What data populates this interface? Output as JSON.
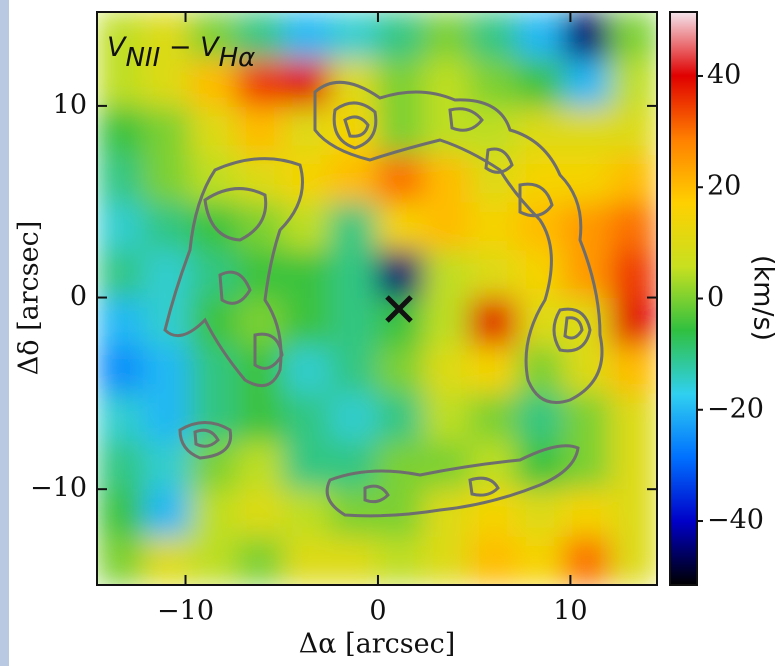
{
  "chart_data": {
    "type": "heatmap",
    "title": [
      "V",
      "NII",
      " − ",
      "V",
      "Hα"
    ],
    "x_label": "Δα [arcsec]",
    "y_label": "Δδ [arcsec]",
    "colorbar_label": "(km/s)",
    "xlim": [
      -14.6,
      14.5
    ],
    "ylim": [
      -15,
      14.9
    ],
    "xticks": [
      {
        "value": -10,
        "label": "−10"
      },
      0,
      10
    ],
    "yticks": [
      {
        "value": -10,
        "label": "−10"
      },
      0,
      10
    ],
    "zlim": [
      -51.5,
      51.5
    ],
    "zticks": [
      {
        "value": -40,
        "label": "−40"
      },
      {
        "value": -20,
        "label": "−20"
      },
      0,
      20,
      40
    ],
    "colormap": [
      "#000000",
      "#0000c8",
      "#0070ff",
      "#30d0f0",
      "#30c040",
      "#c8e020",
      "#ffd000",
      "#ff8000",
      "#e00000",
      "#f4e4ec"
    ],
    "z": [
      [
        5,
        10,
        0,
        -10,
        -20,
        -15,
        -10,
        0,
        -10,
        -20,
        -45,
        0
      ],
      [
        5,
        10,
        20,
        35,
        40,
        10,
        0,
        5,
        0,
        -5,
        -20,
        5
      ],
      [
        -5,
        0,
        10,
        20,
        10,
        15,
        0,
        5,
        5,
        10,
        10,
        10
      ],
      [
        -10,
        0,
        5,
        10,
        15,
        20,
        30,
        20,
        10,
        15,
        15,
        20
      ],
      [
        -15,
        -10,
        -5,
        0,
        5,
        -10,
        15,
        20,
        15,
        20,
        25,
        30
      ],
      [
        -10,
        -15,
        -10,
        -5,
        -5,
        -10,
        -45,
        5,
        10,
        15,
        25,
        35
      ],
      [
        -20,
        -15,
        -5,
        0,
        -5,
        -10,
        -5,
        5,
        40,
        10,
        10,
        40
      ],
      [
        -25,
        -20,
        -10,
        -5,
        -15,
        -10,
        0,
        10,
        15,
        0,
        10,
        20
      ],
      [
        -15,
        -20,
        -10,
        -5,
        -10,
        -15,
        -10,
        5,
        0,
        -10,
        0,
        10
      ],
      [
        -10,
        -15,
        0,
        5,
        -10,
        -10,
        0,
        0,
        5,
        -5,
        0,
        10
      ],
      [
        -5,
        -20,
        5,
        10,
        5,
        0,
        0,
        10,
        15,
        10,
        15,
        10
      ],
      [
        0,
        10,
        5,
        0,
        10,
        10,
        5,
        10,
        20,
        15,
        30,
        10
      ]
    ]
  }
}
